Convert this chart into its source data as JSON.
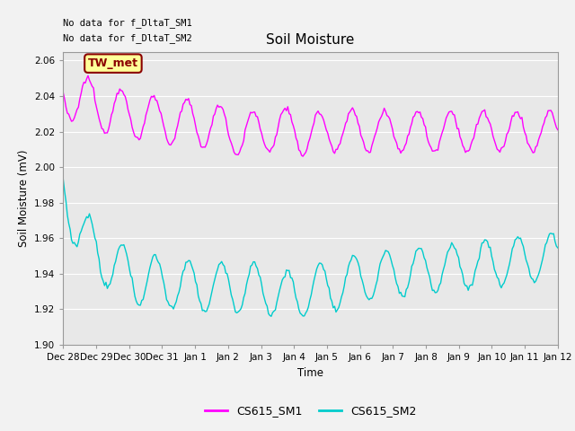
{
  "title": "Soil Moisture",
  "ylabel": "Soil Moisture (mV)",
  "xlabel": "Time",
  "ylim": [
    1.9,
    2.065
  ],
  "yticks": [
    1.9,
    1.92,
    1.94,
    1.96,
    1.98,
    2.0,
    2.02,
    2.04,
    2.06
  ],
  "xtick_labels": [
    "Dec 28",
    "Dec 29",
    "Dec 30",
    "Dec 31",
    "Jan 1",
    "Jan 2",
    "Jan 3",
    "Jan 4",
    "Jan 5",
    "Jan 6",
    "Jan 7",
    "Jan 8",
    "Jan 9",
    "Jan 10",
    "Jan 11",
    "Jan 12"
  ],
  "no_data_text1": "No data for f_DltaT_SM1",
  "no_data_text2": "No data for f_DltaT_SM2",
  "tw_met_label": "TW_met",
  "legend_entries": [
    "CS615_SM1",
    "CS615_SM2"
  ],
  "line1_color": "#FF00FF",
  "line2_color": "#00CCCC",
  "bg_color": "#E8E8E8",
  "grid_color": "#FFFFFF",
  "tw_met_bg": "#FFFF99",
  "tw_met_border": "#8B0000",
  "fig_bg": "#F2F2F2"
}
